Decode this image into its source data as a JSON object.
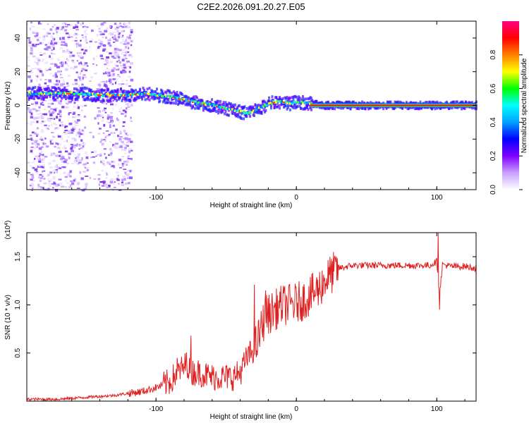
{
  "chart_data": [
    {
      "type": "heatmap",
      "title": "C2E2.2026.091.20.27.E05",
      "xlabel": "Height of straight line (km)",
      "ylabel": "Frequency (Hz)",
      "xlim": [
        -192,
        128
      ],
      "ylim": [
        -50,
        50
      ],
      "xticks": [
        -100,
        0,
        100
      ],
      "xtick_labels": [
        "-100",
        "0",
        "100"
      ],
      "yticks": [
        -40,
        -20,
        0,
        20,
        40
      ],
      "ytick_labels": [
        "-40",
        "-20",
        "0",
        "20",
        "40"
      ],
      "noise_region_x": [
        -192,
        -118
      ],
      "trace": {
        "x": [
          -192,
          -160,
          -140,
          -120,
          -110,
          -100,
          -90,
          -80,
          -70,
          -60,
          -50,
          -40,
          -35,
          -30,
          -25,
          -20,
          -15,
          -10,
          -5,
          0,
          10,
          20,
          40,
          60,
          80,
          100,
          128
        ],
        "y": [
          7,
          7,
          6,
          6,
          7,
          6,
          5,
          3,
          1,
          0,
          -2,
          -4,
          -5,
          -3,
          -1,
          1,
          2,
          2,
          1,
          2,
          1,
          0,
          0,
          0,
          0,
          0,
          0
        ]
      },
      "colorbar": {
        "label": "Normalized spectral amplitude",
        "range": [
          0,
          1
        ],
        "ticks": [
          0.0,
          0.2,
          0.4,
          0.6,
          0.8
        ],
        "tick_labels": [
          "0.0",
          "0.2",
          "0.4",
          "0.6",
          "0.8"
        ],
        "colormap": [
          "#ffffff",
          "#c8a0ff",
          "#8000ff",
          "#0000ff",
          "#00a0ff",
          "#00ffff",
          "#00ff00",
          "#ffff00",
          "#ff8000",
          "#ff0000",
          "#ff0080"
        ]
      }
    },
    {
      "type": "line",
      "xlabel": "Height of straight line (km)",
      "ylabel": "SNR (10 * v/v)",
      "scale_label_base": "(x10",
      "scale_label_exp": "4",
      "scale_label_close": ")",
      "xlim": [
        -192,
        128
      ],
      "ylim": [
        0,
        1.75
      ],
      "xticks": [
        -100,
        0,
        100
      ],
      "xtick_labels": [
        "-100",
        "0",
        "100"
      ],
      "yticks": [
        0.5,
        1.0,
        1.5
      ],
      "ytick_labels": [
        "0.5",
        "1.0",
        "1.5"
      ],
      "color": "#e02020",
      "series": [
        {
          "name": "SNR",
          "x": [
            -192,
            -170,
            -150,
            -140,
            -130,
            -120,
            -110,
            -100,
            -90,
            -85,
            -80,
            -78,
            -75,
            -70,
            -60,
            -50,
            -45,
            -40,
            -35,
            -30,
            -28,
            -25,
            -22,
            -20,
            -15,
            -10,
            -5,
            0,
            5,
            10,
            15,
            20,
            25,
            30,
            40,
            60,
            80,
            95,
            100,
            102,
            104,
            110,
            120,
            128
          ],
          "y": [
            0.02,
            0.02,
            0.04,
            0.05,
            0.06,
            0.08,
            0.1,
            0.14,
            0.2,
            0.3,
            0.35,
            0.4,
            0.3,
            0.3,
            0.25,
            0.25,
            0.25,
            0.3,
            0.45,
            0.55,
            0.6,
            0.75,
            0.9,
            0.9,
            0.95,
            1.0,
            1.0,
            1.02,
            1.05,
            1.1,
            1.15,
            1.25,
            1.32,
            1.38,
            1.41,
            1.41,
            1.41,
            1.41,
            1.45,
            1.1,
            1.42,
            1.4,
            1.4,
            1.38
          ]
        }
      ],
      "spikes": [
        {
          "x": -85,
          "y": 0.45
        },
        {
          "x": -75,
          "y": 0.68
        },
        {
          "x": -30,
          "y": 1.21
        },
        {
          "x": -22,
          "y": 1.15
        },
        {
          "x": -5,
          "y": 1.21
        },
        {
          "x": 101,
          "y": 1.75
        },
        {
          "x": 102,
          "y": 0.95
        }
      ]
    }
  ]
}
